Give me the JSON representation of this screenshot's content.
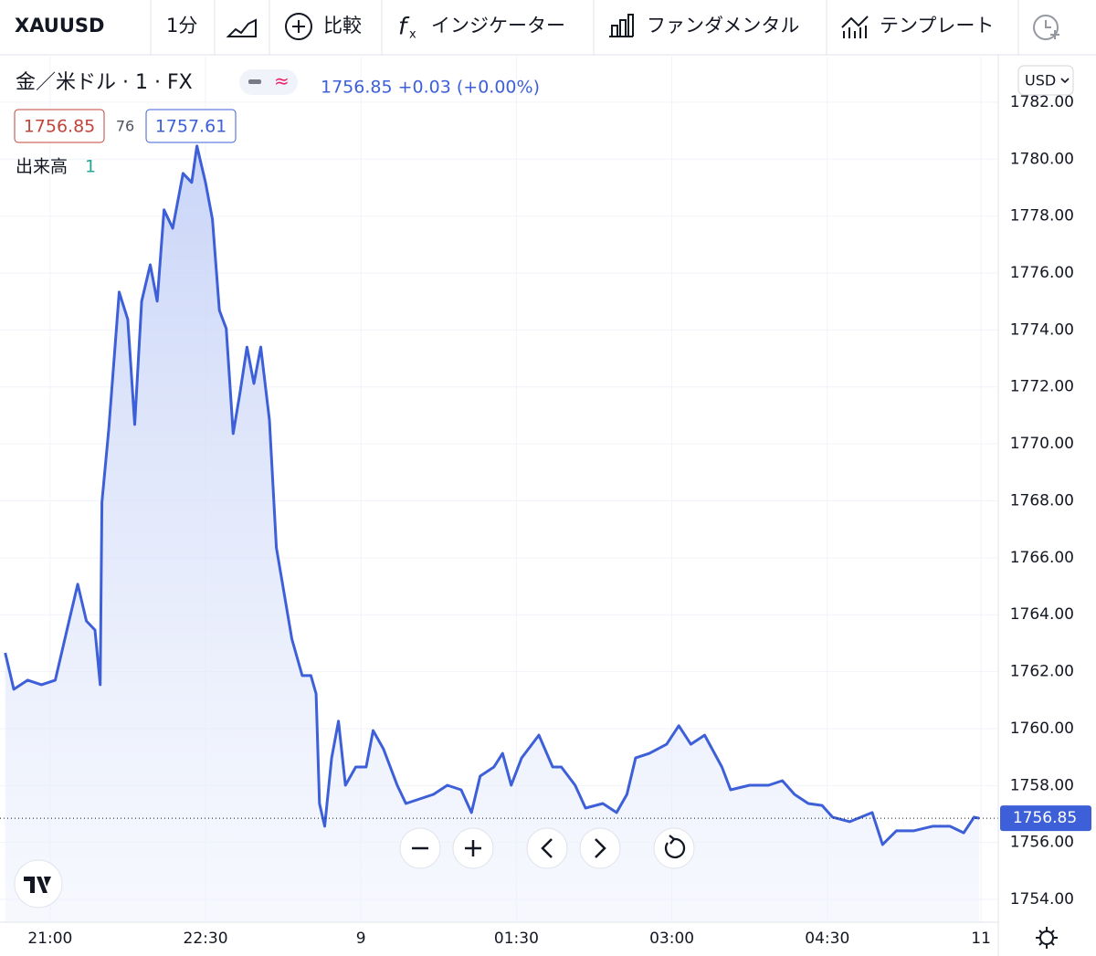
{
  "toolbar": {
    "symbol": "XAUUSD",
    "interval": "1分",
    "compare": "比較",
    "indicators": "インジケーター",
    "fundamentals": "ファンダメンタル",
    "templates": "テンプレート"
  },
  "legend": {
    "title": "金／米ドル · 1 · FX",
    "quote": "1756.85 +0.03 (+0.00%)",
    "bid": "1756.85",
    "spread": "76",
    "ask": "1757.61",
    "volume_label": "出来高",
    "volume_value": "1"
  },
  "currency": "USD",
  "chart_data": {
    "type": "line",
    "color": "#3d5fd8",
    "grid": true,
    "last_price_label": "1756.85",
    "x": [
      -26,
      -21,
      -13,
      -5,
      3,
      11,
      16,
      21,
      26,
      29,
      30,
      34,
      40,
      45,
      49,
      53,
      58,
      62,
      66,
      71,
      77,
      82,
      85,
      90,
      94,
      98,
      102,
      106,
      110,
      114,
      118,
      122,
      127,
      131,
      136,
      140,
      146,
      151,
      154,
      156,
      159,
      163,
      167,
      171,
      177,
      183,
      187,
      193,
      201,
      206,
      214,
      222,
      230,
      238,
      244,
      249,
      257,
      262,
      267,
      273,
      283,
      291,
      296,
      304,
      310,
      320,
      328,
      334,
      339,
      347,
      357,
      364,
      371,
      379,
      389,
      394,
      405,
      416,
      424,
      431,
      439,
      447,
      453,
      463,
      476,
      482,
      490,
      500,
      511,
      521,
      529,
      535,
      538
    ],
    "series": [
      {
        "name": "XAUUSD",
        "values": [
          1762.66,
          1761.38,
          1761.7,
          1761.54,
          1761.7,
          1763.78,
          1765.07,
          1763.78,
          1763.46,
          1761.54,
          1767.95,
          1770.52,
          1775.33,
          1774.37,
          1770.68,
          1775.01,
          1776.29,
          1775.01,
          1778.22,
          1777.57,
          1779.5,
          1779.18,
          1780.46,
          1779.18,
          1777.89,
          1774.69,
          1774.05,
          1770.36,
          1771.8,
          1773.4,
          1772.12,
          1773.4,
          1770.84,
          1766.35,
          1764.58,
          1763.14,
          1761.86,
          1761.86,
          1761.22,
          1757.37,
          1756.57,
          1758.97,
          1760.26,
          1758.01,
          1758.65,
          1758.65,
          1759.93,
          1759.29,
          1758.01,
          1757.37,
          1757.53,
          1757.69,
          1758.01,
          1757.85,
          1757.05,
          1758.33,
          1758.65,
          1759.13,
          1758.01,
          1758.97,
          1759.77,
          1758.65,
          1758.65,
          1758.01,
          1757.21,
          1757.37,
          1757.05,
          1757.69,
          1758.97,
          1759.13,
          1759.45,
          1760.1,
          1759.45,
          1759.77,
          1758.65,
          1757.85,
          1758.01,
          1758.01,
          1758.17,
          1757.69,
          1757.37,
          1757.3,
          1756.89,
          1756.73,
          1757.05,
          1755.93,
          1756.41,
          1756.41,
          1756.57,
          1756.57,
          1756.34,
          1756.89,
          1756.85
        ]
      }
    ],
    "xlim": [
      -29,
      549
    ],
    "xticks": [
      {
        "value": 0,
        "label": "21:00"
      },
      {
        "value": 90,
        "label": "22:30"
      },
      {
        "value": 180,
        "label": "9"
      },
      {
        "value": 270,
        "label": "01:30"
      },
      {
        "value": 360,
        "label": "03:00"
      },
      {
        "value": 450,
        "label": "04:30"
      },
      {
        "value": 539,
        "label": "11"
      }
    ],
    "ylim": [
      1753.2,
      1783.6
    ],
    "yticks": [
      {
        "value": 1754,
        "label": "1754.00"
      },
      {
        "value": 1756,
        "label": "1756.00"
      },
      {
        "value": 1758,
        "label": "1758.00"
      },
      {
        "value": 1760,
        "label": "1760.00"
      },
      {
        "value": 1762,
        "label": "1762.00"
      },
      {
        "value": 1764,
        "label": "1764.00"
      },
      {
        "value": 1766,
        "label": "1766.00"
      },
      {
        "value": 1768,
        "label": "1768.00"
      },
      {
        "value": 1770,
        "label": "1770.00"
      },
      {
        "value": 1772,
        "label": "1772.00"
      },
      {
        "value": 1774,
        "label": "1774.00"
      },
      {
        "value": 1776,
        "label": "1776.00"
      },
      {
        "value": 1778,
        "label": "1778.00"
      },
      {
        "value": 1780,
        "label": "1780.00"
      },
      {
        "value": 1782,
        "label": "1782.00"
      }
    ]
  }
}
